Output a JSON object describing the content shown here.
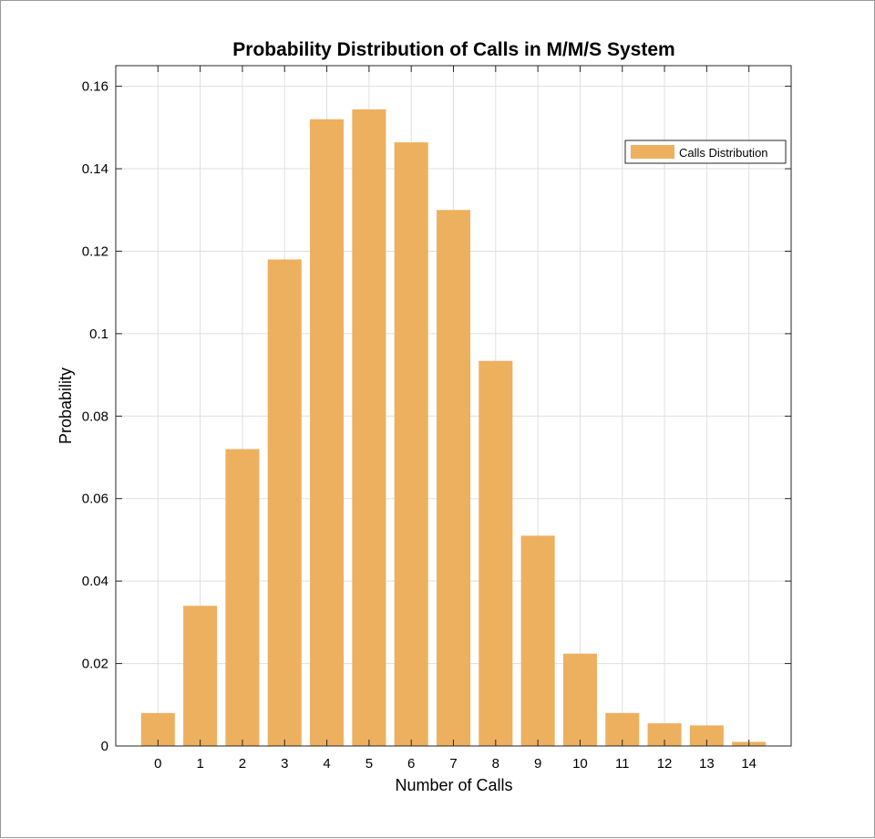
{
  "chart_data": {
    "type": "bar",
    "title": "Probability Distribution of Calls in M/M/S System",
    "xlabel": "Number of Calls",
    "ylabel": "Probability",
    "categories": [
      "0",
      "1",
      "2",
      "3",
      "4",
      "5",
      "6",
      "7",
      "8",
      "9",
      "10",
      "11",
      "12",
      "13",
      "14"
    ],
    "series": [
      {
        "name": "Calls Distribution",
        "color": "#EDB05F",
        "values": [
          0.008,
          0.034,
          0.072,
          0.118,
          0.152,
          0.1544,
          0.1464,
          0.13,
          0.0934,
          0.051,
          0.0224,
          0.008,
          0.0055,
          0.005,
          0.001
        ]
      }
    ],
    "ylim": [
      0,
      0.165
    ],
    "xlim": [
      -1,
      15
    ],
    "yticks": [
      0,
      0.02,
      0.04,
      0.06,
      0.08,
      0.1,
      0.12,
      0.14,
      0.16
    ],
    "ytick_labels": [
      "0",
      "0.02",
      "0.04",
      "0.06",
      "0.08",
      "0.1",
      "0.12",
      "0.14",
      "0.16"
    ],
    "grid": true,
    "legend": {
      "position": "top-right",
      "entries": [
        "Calls Distribution"
      ]
    }
  }
}
